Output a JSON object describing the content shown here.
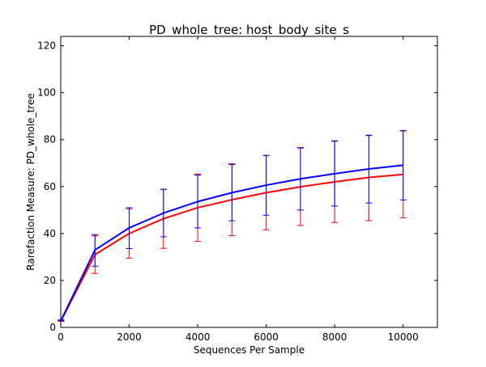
{
  "chart_data": {
    "type": "line",
    "title": "PD_whole_tree: host_body_site_s",
    "xlabel": "Sequences Per Sample",
    "ylabel": "Rarefaction Measure: PD_whole_tree",
    "xlim": [
      0,
      11000
    ],
    "ylim": [
      0,
      124
    ],
    "xticks": [
      0,
      2000,
      4000,
      6000,
      8000,
      10000
    ],
    "yticks": [
      0,
      20,
      40,
      60,
      80,
      100,
      120
    ],
    "grid": false,
    "legend": "none",
    "x": [
      10,
      1000,
      2000,
      3000,
      4000,
      5000,
      6000,
      7000,
      8000,
      9000,
      10000
    ],
    "series": [
      {
        "color": "#ff0000",
        "values": [
          2.8,
          31.0,
          40.0,
          46.3,
          51.0,
          54.4,
          57.4,
          59.9,
          62.0,
          63.9,
          65.2
        ],
        "err_low": [
          2.6,
          23.0,
          29.5,
          33.7,
          36.7,
          39.1,
          41.6,
          43.4,
          44.7,
          45.5,
          46.7
        ],
        "err_high": [
          3.0,
          39.0,
          50.5,
          58.9,
          65.3,
          69.7,
          73.2,
          76.4,
          79.3,
          81.7,
          83.7
        ]
      },
      {
        "color": "#0000ff",
        "values": [
          3.0,
          33.0,
          42.4,
          48.7,
          53.6,
          57.4,
          60.6,
          63.3,
          65.5,
          67.5,
          69.1
        ],
        "err_low": [
          2.8,
          26.1,
          33.6,
          38.6,
          42.4,
          45.4,
          47.8,
          50.0,
          51.7,
          53.0,
          54.3
        ],
        "err_high": [
          3.2,
          39.5,
          51.0,
          58.8,
          64.9,
          69.4,
          73.3,
          76.6,
          79.5,
          81.9,
          83.9
        ]
      }
    ]
  }
}
